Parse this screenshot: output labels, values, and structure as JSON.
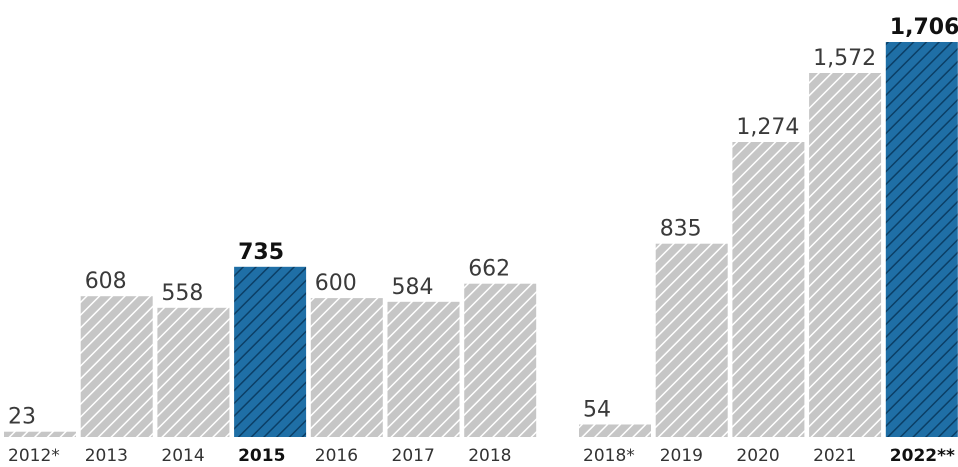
{
  "chart_data": [
    {
      "type": "bar",
      "categories": [
        "2012*",
        "2013",
        "2014",
        "2015",
        "2016",
        "2017",
        "2018"
      ],
      "values": [
        23,
        608,
        558,
        735,
        600,
        584,
        662
      ],
      "value_labels": [
        "23",
        "608",
        "558",
        "735",
        "600",
        "584",
        "662"
      ],
      "highlight": [
        "2015"
      ],
      "title": "",
      "xlabel": "",
      "ylabel": "",
      "ylim": [
        0,
        1706
      ],
      "grid": false,
      "bar_style": "diagonal-hatch",
      "colors": {
        "bar_fill": "#c6c6c6",
        "bar_hatch": "#ffffff",
        "highlight_fill": "#1f6fa6",
        "highlight_hatch": "#0b3f66"
      }
    },
    {
      "type": "bar",
      "categories": [
        "2018*",
        "2019",
        "2020",
        "2021",
        "2022**"
      ],
      "values": [
        54,
        835,
        1274,
        1572,
        1706
      ],
      "value_labels": [
        "54",
        "835",
        "1,274",
        "1,572",
        "1,706"
      ],
      "highlight": [
        "2022**"
      ],
      "title": "",
      "xlabel": "",
      "ylabel": "",
      "ylim": [
        0,
        1706
      ],
      "grid": false,
      "bar_style": "diagonal-hatch",
      "colors": {
        "bar_fill": "#c6c6c6",
        "bar_hatch": "#ffffff",
        "highlight_fill": "#1f6fa6",
        "highlight_hatch": "#0b3f66"
      }
    }
  ]
}
